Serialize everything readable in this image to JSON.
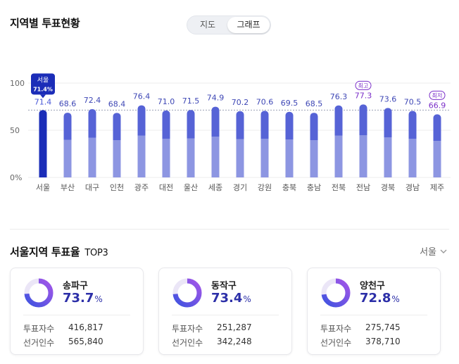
{
  "header": {
    "title": "지역별 투표현황"
  },
  "view_toggle": {
    "map_label": "지도",
    "graph_label": "그래프",
    "selected": "그래프"
  },
  "chart_data": {
    "type": "bar",
    "categories": [
      "서울",
      "부산",
      "대구",
      "인천",
      "광주",
      "대전",
      "울산",
      "세종",
      "경기",
      "강원",
      "충북",
      "충남",
      "전북",
      "전남",
      "경북",
      "경남",
      "제주"
    ],
    "values": [
      71.4,
      68.6,
      72.4,
      68.4,
      76.4,
      71.0,
      71.5,
      74.9,
      70.2,
      70.6,
      69.5,
      68.5,
      76.3,
      77.3,
      73.6,
      70.5,
      66.9
    ],
    "value_labels": [
      "71.4",
      "68.6",
      "72.4",
      "68.4",
      "76.4",
      "71.0",
      "71.5",
      "74.9",
      "70.2",
      "70.6",
      "69.5",
      "68.5",
      "76.3",
      "77.3",
      "73.6",
      "70.5",
      "66.9"
    ],
    "ylim": [
      0,
      100
    ],
    "yticks": [
      {
        "value": 0,
        "label": "0%"
      },
      {
        "value": 50,
        "label": "50"
      },
      {
        "value": 100,
        "label": "100"
      }
    ],
    "reference_line": 71.4,
    "highlight": {
      "category": "서울",
      "tooltip_name": "서울",
      "tooltip_value": "71.4%"
    },
    "badges": [
      {
        "category": "전남",
        "label": "최고"
      },
      {
        "category": "제주",
        "label": "최저"
      }
    ],
    "colors": {
      "highlight_bar": "#1b2db8",
      "bar_top": "#5663d6",
      "bar_bottom": "#8d96e2",
      "label": "#3e47b5",
      "badge": "#7b2fc9",
      "axis_text": "#666666",
      "grid": "#eeeeee",
      "ref_line": "#9aa0b4"
    }
  },
  "section": {
    "title": "서울지역 투표율",
    "title_suffix": "TOP3",
    "region_select": "서울"
  },
  "cards": [
    {
      "name": "송파구",
      "rate": "73.7",
      "rate_value": 73.7,
      "unit": "%",
      "voters_label": "투표자수",
      "voters": "416,817",
      "electorate_label": "선거인수",
      "electorate": "565,840"
    },
    {
      "name": "동작구",
      "rate": "73.4",
      "rate_value": 73.4,
      "unit": "%",
      "voters_label": "투표자수",
      "voters": "251,287",
      "electorate_label": "선거인수",
      "electorate": "342,248"
    },
    {
      "name": "양천구",
      "rate": "72.8",
      "rate_value": 72.8,
      "unit": "%",
      "voters_label": "투표자수",
      "voters": "275,745",
      "electorate_label": "선거인수",
      "electorate": "378,710"
    }
  ],
  "ring_colors": {
    "track": "#ebe6f7",
    "start": "#3f54e0",
    "end": "#a255e8"
  }
}
